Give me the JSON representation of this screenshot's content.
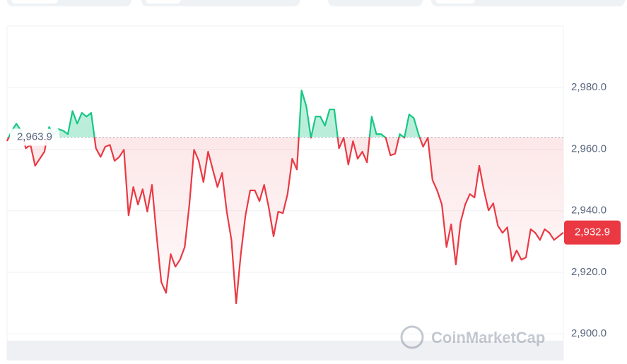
{
  "chart_data": {
    "type": "line",
    "watermark": "CoinMarketCap",
    "values": [
      2962.6,
      2966.0,
      2968.3,
      2966.0,
      2960.3,
      2961.4,
      2954.6,
      2956.9,
      2959.2,
      2967.2,
      2964.9,
      2966.5,
      2966.0,
      2964.9,
      2972.4,
      2968.3,
      2971.8,
      2970.6,
      2971.8,
      2960.3,
      2957.5,
      2960.8,
      2961.4,
      2956.2,
      2957.5,
      2959.8,
      2938.5,
      2947.7,
      2942.0,
      2947.0,
      2939.7,
      2948.4,
      2931.7,
      2916.8,
      2913.3,
      2925.9,
      2921.8,
      2924.1,
      2928.2,
      2942.0,
      2959.8,
      2956.2,
      2949.3,
      2959.2,
      2953.4,
      2947.7,
      2952.3,
      2939.7,
      2930.5,
      2909.9,
      2925.9,
      2938.5,
      2946.6,
      2946.6,
      2943.1,
      2948.4,
      2940.8,
      2931.7,
      2939.7,
      2939.2,
      2945.4,
      2956.9,
      2953.4,
      2979.1,
      2974.0,
      2963.7,
      2970.6,
      2970.6,
      2967.6,
      2972.9,
      2972.9,
      2960.3,
      2963.7,
      2955.0,
      2962.6,
      2956.9,
      2959.2,
      2955.7,
      2970.6,
      2964.9,
      2964.9,
      2963.7,
      2958.0,
      2958.5,
      2964.9,
      2963.7,
      2971.3,
      2970.1,
      2964.9,
      2960.8,
      2963.7,
      2950.0,
      2946.6,
      2942.0,
      2928.2,
      2935.6,
      2922.5,
      2936.2,
      2942.0,
      2945.4,
      2944.3,
      2954.6,
      2946.6,
      2940.1,
      2942.4,
      2935.1,
      2932.8,
      2934.6,
      2923.6,
      2927.1,
      2924.1,
      2924.8,
      2934.0,
      2932.8,
      2930.5,
      2934.0,
      2932.8,
      2930.5,
      2931.7,
      2932.9
    ],
    "baseline": 2963.9,
    "baseline_label": "2,963.9",
    "current_price": 2932.9,
    "current_price_label": "2,932.9",
    "up_color": "#16c784",
    "down_color": "#ea3943",
    "ylim": [
      2895,
      3000
    ],
    "yticks": [
      {
        "value": 2900,
        "label": "2,900.0"
      },
      {
        "value": 2920,
        "label": "2,920.0"
      },
      {
        "value": 2940,
        "label": "2,940.0"
      },
      {
        "value": 2960,
        "label": "2,960.0"
      },
      {
        "value": 2980,
        "label": "2,980.0"
      }
    ],
    "grid": true
  }
}
